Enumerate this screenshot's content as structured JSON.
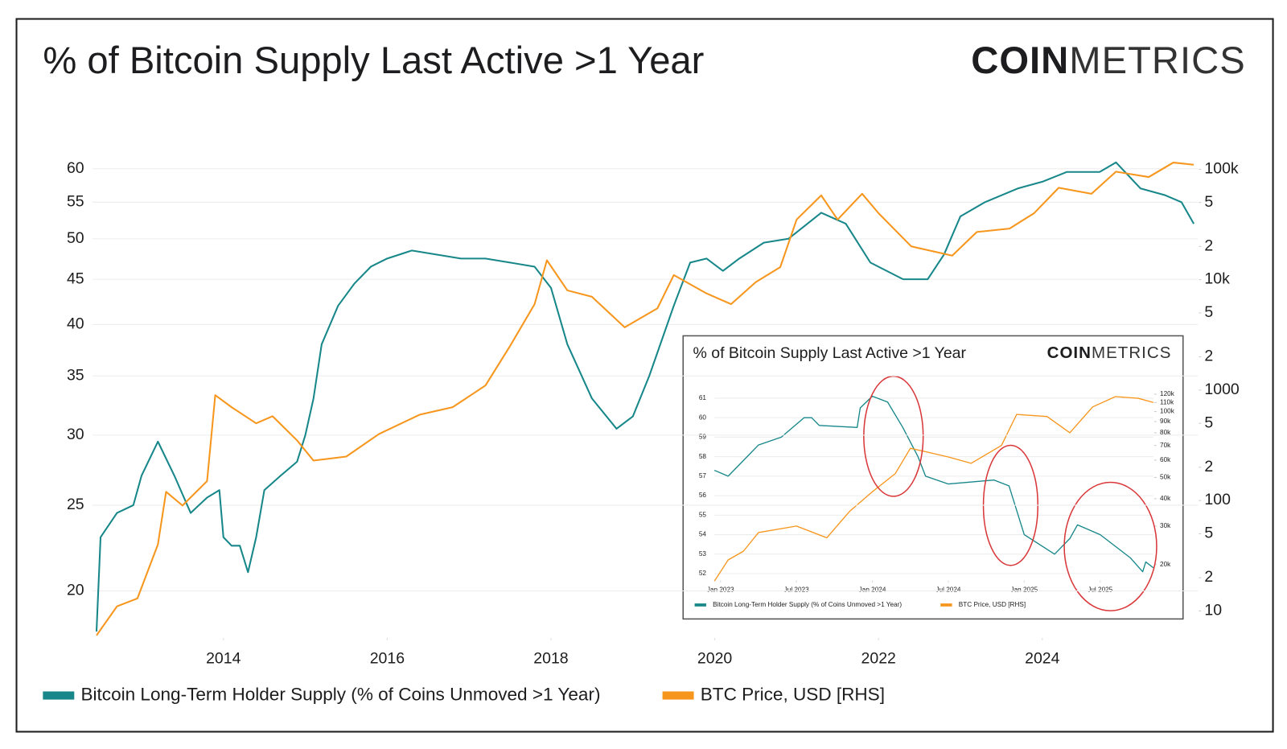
{
  "chart_data": [
    {
      "type": "line",
      "title": "% of Bitcoin Supply Last Active >1 Year",
      "brand": {
        "bold": "COIN",
        "light": "METRICS"
      },
      "xlim": [
        2012.4,
        2025.9
      ],
      "xticks": [
        2014,
        2016,
        2018,
        2020,
        2022,
        2024
      ],
      "ylim": [
        17.7,
        61.3
      ],
      "ylog": true,
      "yticks": [
        20,
        25,
        30,
        35,
        40,
        45,
        50,
        55,
        60
      ],
      "grid": true,
      "y2lim": [
        5.7,
        120000
      ],
      "y2log": true,
      "y2ticks": [
        {
          "value": 100000,
          "label": "100k"
        },
        {
          "value": 50000,
          "label": "5"
        },
        {
          "value": 20000,
          "label": "2"
        },
        {
          "value": 10000,
          "label": "10k"
        },
        {
          "value": 5000,
          "label": "5"
        },
        {
          "value": 2000,
          "label": "2"
        },
        1000,
        {
          "value": 500,
          "label": "5"
        },
        {
          "value": 200,
          "label": "2"
        },
        100,
        {
          "value": 50,
          "label": "5"
        },
        {
          "value": 20,
          "label": "2"
        },
        10
      ],
      "series": [
        {
          "name": "Bitcoin Long-Term Holder Supply (% of Coins Unmoved >1 Year)",
          "color": "#17878a",
          "x": [
            2012.45,
            2012.5,
            2012.7,
            2012.9,
            2013.0,
            2013.2,
            2013.4,
            2013.6,
            2013.8,
            2013.95,
            2014.0,
            2014.1,
            2014.2,
            2014.3,
            2014.4,
            2014.5,
            2014.7,
            2014.9,
            2015.0,
            2015.1,
            2015.2,
            2015.4,
            2015.6,
            2015.8,
            2016.0,
            2016.3,
            2016.6,
            2016.9,
            2017.2,
            2017.5,
            2017.8,
            2018.0,
            2018.2,
            2018.5,
            2018.8,
            2019.0,
            2019.2,
            2019.5,
            2019.7,
            2019.9,
            2020.1,
            2020.3,
            2020.6,
            2020.9,
            2021.3,
            2021.6,
            2021.9,
            2022.3,
            2022.6,
            2022.8,
            2023.0,
            2023.3,
            2023.7,
            2024.0,
            2024.3,
            2024.7,
            2024.9,
            2025.2,
            2025.5,
            2025.7,
            2025.85
          ],
          "values": [
            18,
            23,
            24.5,
            25,
            27,
            29.5,
            27,
            24.5,
            25.5,
            26,
            23,
            22.5,
            22.5,
            21,
            23,
            26,
            27,
            28,
            30,
            33,
            38,
            42,
            44.5,
            46.5,
            47.5,
            48.5,
            48,
            47.5,
            47.5,
            47,
            46.5,
            44,
            38,
            33,
            30.5,
            31.5,
            35,
            42,
            47,
            47.5,
            46,
            47.5,
            49.5,
            50,
            53.5,
            52,
            47,
            45,
            45,
            48,
            53,
            55,
            57,
            58,
            59.5,
            59.5,
            61,
            57,
            56,
            55,
            52
          ]
        },
        {
          "name": "BTC Price, USD [RHS]",
          "color": "#f7961d",
          "axis": "y2",
          "x": [
            2012.45,
            2012.7,
            2012.95,
            2013.2,
            2013.3,
            2013.5,
            2013.8,
            2013.9,
            2014.1,
            2014.4,
            2014.6,
            2014.9,
            2015.1,
            2015.5,
            2015.9,
            2016.4,
            2016.8,
            2017.2,
            2017.5,
            2017.8,
            2017.95,
            2018.2,
            2018.5,
            2018.9,
            2019.3,
            2019.5,
            2019.9,
            2020.2,
            2020.5,
            2020.8,
            2021.0,
            2021.3,
            2021.5,
            2021.8,
            2022.0,
            2022.4,
            2022.9,
            2023.2,
            2023.6,
            2023.9,
            2024.2,
            2024.6,
            2024.9,
            2025.3,
            2025.6,
            2025.85
          ],
          "values": [
            6,
            11,
            13,
            40,
            120,
            90,
            150,
            900,
            700,
            500,
            580,
            350,
            230,
            250,
            400,
            600,
            700,
            1100,
            2500,
            6000,
            15000,
            8000,
            7000,
            3700,
            5500,
            11000,
            7500,
            6000,
            9500,
            13000,
            35000,
            58000,
            35000,
            60000,
            40000,
            20000,
            16500,
            27000,
            29000,
            40000,
            68000,
            60000,
            95000,
            85000,
            115000,
            110000
          ]
        }
      ]
    },
    {
      "type": "line",
      "title": "% of Bitcoin Supply Last Active >1 Year",
      "brand": {
        "bold": "COIN",
        "light": "METRICS"
      },
      "xlim": [
        2022.96,
        2025.85
      ],
      "xticks": [
        {
          "value": 2023,
          "label": "Jan 2023"
        },
        {
          "value": 2023.5,
          "label": "Jul 2023"
        },
        {
          "value": 2024,
          "label": "Jan 2024"
        },
        {
          "value": 2024.5,
          "label": "Jul 2024"
        },
        {
          "value": 2025,
          "label": "Jan 2025"
        },
        {
          "value": 2025.5,
          "label": "Jul 2025"
        }
      ],
      "ylim": [
        51.66,
        61.37
      ],
      "yticks": [
        52,
        53,
        54,
        55,
        56,
        57,
        58,
        59,
        60,
        61
      ],
      "grid": true,
      "y2lim": [
        16950,
        124200
      ],
      "y2log": true,
      "y2ticks": [
        {
          "value": 120000,
          "label": "120k"
        },
        {
          "value": 110000,
          "label": "110k"
        },
        {
          "value": 100000,
          "label": "100k"
        },
        {
          "value": 90000,
          "label": "90k"
        },
        {
          "value": 80000,
          "label": "80k"
        },
        {
          "value": 70000,
          "label": "70k"
        },
        {
          "value": 60000,
          "label": "60k"
        },
        {
          "value": 50000,
          "label": "50k"
        },
        {
          "value": 40000,
          "label": "40k"
        },
        {
          "value": 30000,
          "label": "30k"
        },
        {
          "value": 20000,
          "label": "20k"
        }
      ],
      "series": [
        {
          "name": "Bitcoin Long-Term Holder Supply (% of Coins Unmoved >1 Year)",
          "color": "#17878a",
          "x": [
            2022.96,
            2023.05,
            2023.15,
            2023.25,
            2023.4,
            2023.55,
            2023.6,
            2023.65,
            2023.9,
            2023.92,
            2024.0,
            2024.1,
            2024.2,
            2024.3,
            2024.35,
            2024.5,
            2024.8,
            2024.9,
            2025.0,
            2025.1,
            2025.2,
            2025.3,
            2025.35,
            2025.5,
            2025.7,
            2025.78,
            2025.8,
            2025.85
          ],
          "values": [
            57.3,
            57,
            57.8,
            58.6,
            59,
            60,
            60,
            59.6,
            59.5,
            60.5,
            61.1,
            60.8,
            59.5,
            58,
            57,
            56.6,
            56.8,
            56.5,
            54,
            53.5,
            53,
            53.8,
            54.5,
            54,
            52.8,
            52.1,
            52.6,
            52.3
          ]
        },
        {
          "name": "BTC Price, USD [RHS]",
          "color": "#f7961d",
          "axis": "y2",
          "x": [
            2022.96,
            2023.05,
            2023.15,
            2023.25,
            2023.5,
            2023.7,
            2023.85,
            2024.0,
            2024.15,
            2024.25,
            2024.5,
            2024.65,
            2024.85,
            2024.95,
            2025.15,
            2025.3,
            2025.45,
            2025.6,
            2025.75,
            2025.85
          ],
          "values": [
            16800,
            21000,
            23000,
            28000,
            30000,
            26500,
            35000,
            43000,
            52000,
            68000,
            62000,
            58000,
            70000,
            97000,
            95000,
            80000,
            105000,
            117000,
            115000,
            110000
          ]
        }
      ]
    }
  ]
}
